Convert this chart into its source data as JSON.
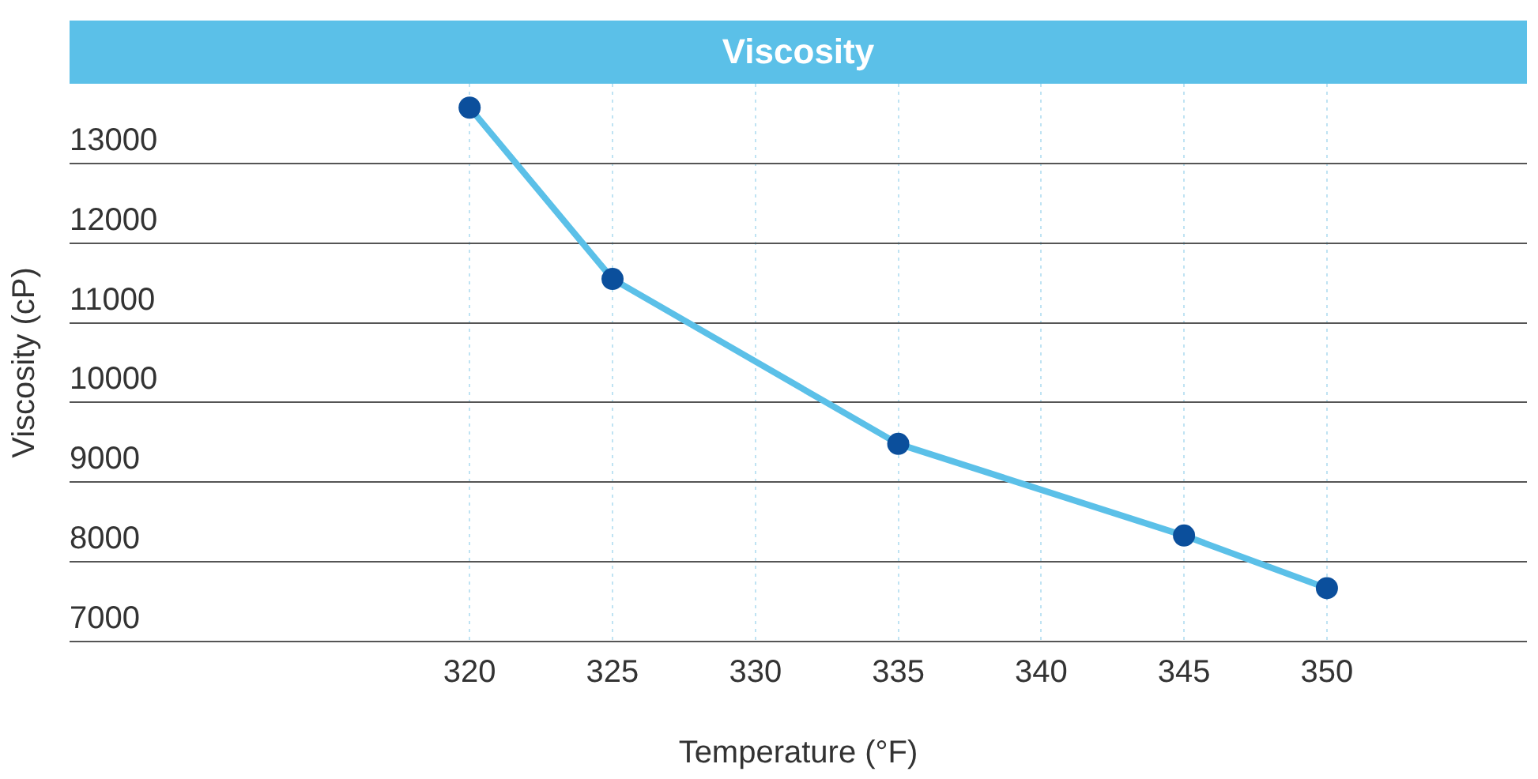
{
  "chart_data": {
    "type": "line",
    "title": "Viscosity",
    "xlabel": "Temperature (°F)",
    "ylabel": "Viscosity (cP)",
    "x": [
      320,
      325,
      335,
      345,
      350
    ],
    "series": [
      {
        "color": "#5bc0e8",
        "values": [
          13700,
          11550,
          9480,
          8330,
          7670
        ]
      }
    ],
    "xlim": [
      306,
      357
    ],
    "xticks": [
      320,
      325,
      330,
      335,
      340,
      345,
      350
    ],
    "ylim": [
      7000,
      14000
    ],
    "yticks": [
      7000,
      8000,
      9000,
      10000,
      11000,
      12000,
      13000
    ],
    "grid": true,
    "legend": false,
    "marker": "circle",
    "line_style": "solid"
  }
}
